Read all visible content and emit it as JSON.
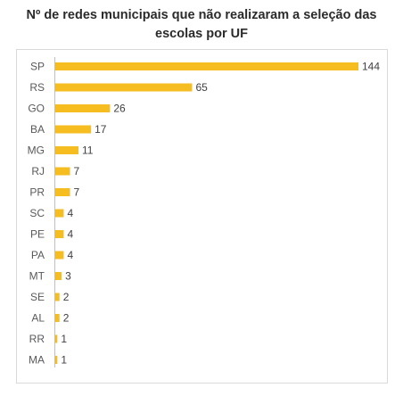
{
  "chart_data": {
    "type": "bar",
    "orientation": "horizontal",
    "title_lines": [
      "Nº de redes municipais que não realizaram a seleção das",
      "escolas por UF"
    ],
    "xlabel": "",
    "ylabel": "",
    "categories": [
      "SP",
      "RS",
      "GO",
      "BA",
      "MG",
      "RJ",
      "PR",
      "SC",
      "PE",
      "PA",
      "MT",
      "SE",
      "AL",
      "RR",
      "MA"
    ],
    "values": [
      144,
      65,
      26,
      17,
      11,
      7,
      7,
      4,
      4,
      4,
      3,
      2,
      2,
      1,
      1
    ],
    "xlim": [
      0,
      144
    ],
    "grid": false,
    "legend": "none",
    "bar_color": "#F5BD1F",
    "data_labels": true
  }
}
